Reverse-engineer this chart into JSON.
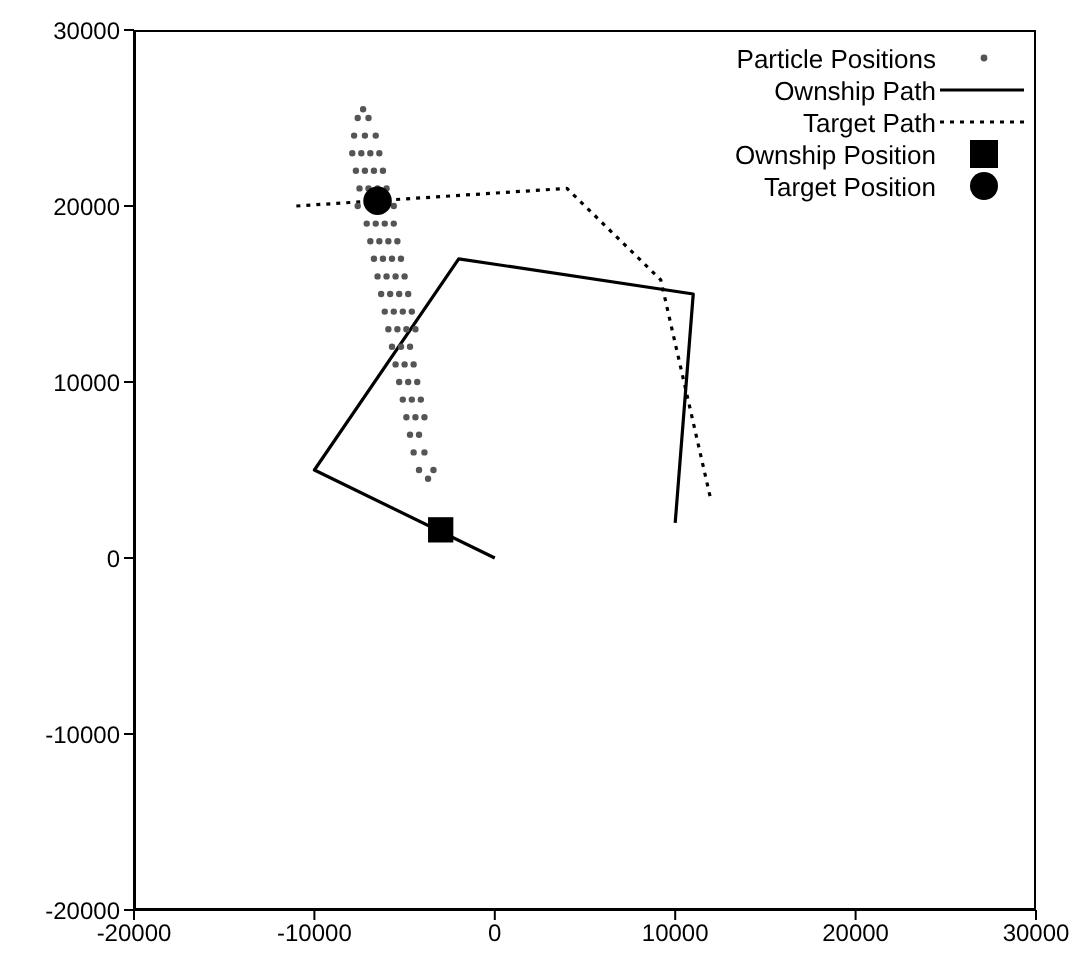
{
  "chart_data": {
    "type": "line",
    "xlim": [
      -20000,
      30000
    ],
    "ylim": [
      -20000,
      30000
    ],
    "xticks": [
      -20000,
      -10000,
      0,
      10000,
      20000,
      30000
    ],
    "yticks": [
      -20000,
      -10000,
      0,
      10000,
      20000,
      30000
    ],
    "grid": false,
    "legend": "top right",
    "series": [
      {
        "name": "Particle Positions",
        "type": "scatter",
        "marker": "circle",
        "color": "#555555",
        "x": [
          -7300,
          -7600,
          -7000,
          -7800,
          -7200,
          -6600,
          -7900,
          -7400,
          -6900,
          -6400,
          -7700,
          -7200,
          -6700,
          -6200,
          -7500,
          -7000,
          -6500,
          -6000,
          -7600,
          -5600,
          -7100,
          -6600,
          -6100,
          -5600,
          -6900,
          -6400,
          -5900,
          -5400,
          -6700,
          -6200,
          -5700,
          -5200,
          -6500,
          -6000,
          -5500,
          -5000,
          -6300,
          -5800,
          -5300,
          -4800,
          -6100,
          -5600,
          -5100,
          -4600,
          -5900,
          -5400,
          -4900,
          -4400,
          -5700,
          -5200,
          -4700,
          -5500,
          -5000,
          -4500,
          -5300,
          -4800,
          -4300,
          -5100,
          -4600,
          -4100,
          -4900,
          -4400,
          -3900,
          -4700,
          -4200,
          -4500,
          -3900,
          -4200,
          -3400,
          -3700
        ],
        "values": [
          25500,
          25000,
          25000,
          24000,
          24000,
          24000,
          23000,
          23000,
          23000,
          23000,
          22000,
          22000,
          22000,
          22000,
          21000,
          21000,
          21000,
          21000,
          20000,
          20000,
          19000,
          19000,
          19000,
          19000,
          18000,
          18000,
          18000,
          18000,
          17000,
          17000,
          17000,
          17000,
          16000,
          16000,
          16000,
          16000,
          15000,
          15000,
          15000,
          15000,
          14000,
          14000,
          14000,
          14000,
          13000,
          13000,
          13000,
          13000,
          12000,
          12000,
          12000,
          11000,
          11000,
          11000,
          10000,
          10000,
          10000,
          9000,
          9000,
          9000,
          8000,
          8000,
          8000,
          7000,
          7000,
          6000,
          6000,
          5000,
          5000,
          4500
        ]
      },
      {
        "name": "Ownship Path",
        "line_style": "solid",
        "marker": "none",
        "color": "#000000",
        "x": [
          0,
          -10000,
          -2000,
          11000,
          10000
        ],
        "values": [
          0,
          5000,
          17000,
          15000,
          2000
        ]
      },
      {
        "name": "Target Path",
        "line_style": "dotted",
        "marker": "none",
        "color": "#000000",
        "x": [
          -11000,
          -6500,
          4000,
          9200,
          12000
        ],
        "values": [
          20000,
          20300,
          21000,
          15800,
          3200
        ]
      },
      {
        "name": "Ownship Position",
        "type": "scatter",
        "marker": "square",
        "color": "#000000",
        "x": [
          -3000
        ],
        "values": [
          1600
        ]
      },
      {
        "name": "Target Position",
        "type": "scatter",
        "marker": "circle",
        "color": "#000000",
        "x": [
          -6500
        ],
        "values": [
          20300
        ]
      }
    ]
  }
}
